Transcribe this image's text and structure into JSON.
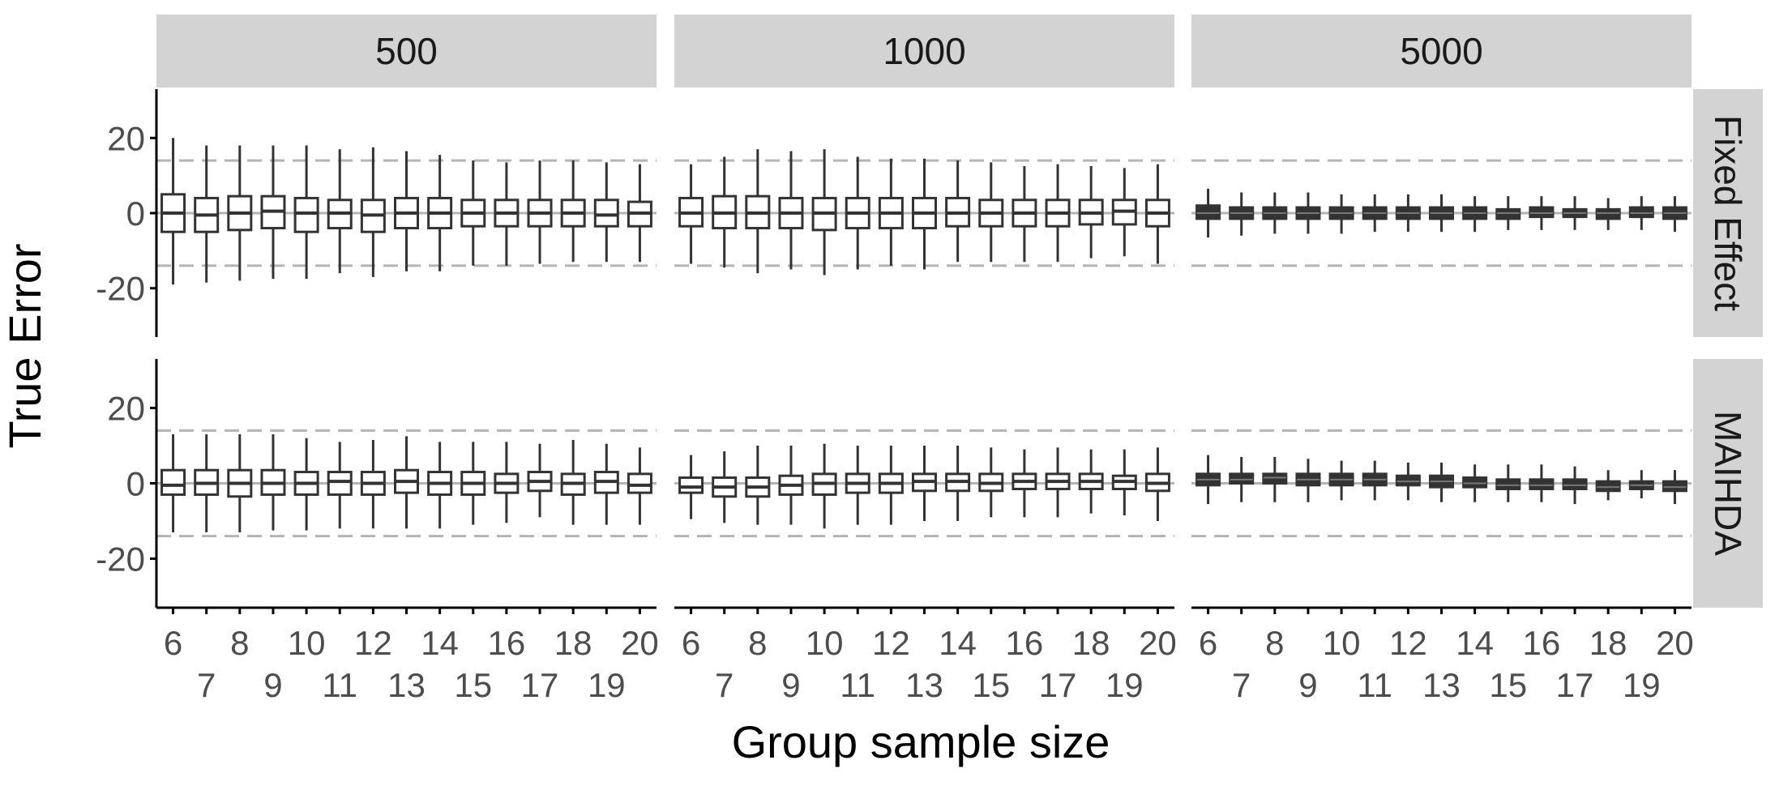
{
  "chart_data": {
    "type": "boxplot",
    "xlabel": "Group sample size",
    "ylabel": "True Error",
    "ylim": [
      -33,
      33
    ],
    "yticks": [
      20,
      0,
      -20
    ],
    "ytick_labels": [
      "20",
      "0",
      "-20"
    ],
    "reference_lines": [
      0,
      14,
      -14
    ],
    "categories": [
      6,
      7,
      8,
      9,
      10,
      11,
      12,
      13,
      14,
      15,
      16,
      17,
      18,
      19,
      20
    ],
    "xtick_labels_top": [
      "6",
      "8",
      "10",
      "12",
      "14",
      "16",
      "18",
      "20"
    ],
    "xtick_labels_bottom": [
      "7",
      "9",
      "11",
      "13",
      "15",
      "17",
      "19"
    ],
    "column_facets": [
      "500",
      "1000",
      "5000"
    ],
    "row_facets": [
      "Fixed Effect",
      "MAIHDA"
    ],
    "colors": {
      "strip": "#d3d3d3",
      "box_fill": "#ffffff",
      "box_fill_dense": "#333333",
      "line": "#333333",
      "reference": "#b4b4b4",
      "axis": "#000000",
      "tick_text": "#4d4d4d"
    },
    "panels": [
      {
        "column": "500",
        "row": "Fixed Effect",
        "boxes": [
          {
            "min": -19,
            "q1": -5,
            "median": 0,
            "q3": 5,
            "max": 20
          },
          {
            "min": -18.5,
            "q1": -5,
            "median": -0.5,
            "q3": 4,
            "max": 18
          },
          {
            "min": -18,
            "q1": -4.5,
            "median": 0,
            "q3": 4.5,
            "max": 18
          },
          {
            "min": -17.5,
            "q1": -4,
            "median": 0.5,
            "q3": 4.5,
            "max": 18
          },
          {
            "min": -17.5,
            "q1": -5,
            "median": 0,
            "q3": 4,
            "max": 18
          },
          {
            "min": -16,
            "q1": -4,
            "median": 0,
            "q3": 3.5,
            "max": 17
          },
          {
            "min": -17,
            "q1": -5,
            "median": -0.5,
            "q3": 3.5,
            "max": 17.5
          },
          {
            "min": -15.5,
            "q1": -4,
            "median": 0,
            "q3": 4,
            "max": 16.5
          },
          {
            "min": -15.5,
            "q1": -4,
            "median": 0,
            "q3": 4,
            "max": 15.5
          },
          {
            "min": -14,
            "q1": -3.5,
            "median": 0,
            "q3": 3.5,
            "max": 14
          },
          {
            "min": -14,
            "q1": -3.5,
            "median": 0,
            "q3": 3.5,
            "max": 13.5
          },
          {
            "min": -13.5,
            "q1": -3.5,
            "median": 0,
            "q3": 3.5,
            "max": 14
          },
          {
            "min": -13,
            "q1": -3.5,
            "median": 0,
            "q3": 3.5,
            "max": 14
          },
          {
            "min": -13,
            "q1": -3.5,
            "median": -0.5,
            "q3": 3.5,
            "max": 13.5
          },
          {
            "min": -13,
            "q1": -3.5,
            "median": 0,
            "q3": 3,
            "max": 13
          }
        ]
      },
      {
        "column": "1000",
        "row": "Fixed Effect",
        "boxes": [
          {
            "min": -13.5,
            "q1": -3.5,
            "median": 0,
            "q3": 4,
            "max": 13
          },
          {
            "min": -14.5,
            "q1": -4,
            "median": 0,
            "q3": 4.5,
            "max": 15
          },
          {
            "min": -16,
            "q1": -4,
            "median": 0,
            "q3": 4.5,
            "max": 17
          },
          {
            "min": -15,
            "q1": -4,
            "median": 0,
            "q3": 4,
            "max": 16.5
          },
          {
            "min": -16.5,
            "q1": -4.5,
            "median": 0,
            "q3": 4,
            "max": 17
          },
          {
            "min": -15,
            "q1": -4,
            "median": 0,
            "q3": 4,
            "max": 15
          },
          {
            "min": -14,
            "q1": -4,
            "median": 0,
            "q3": 4,
            "max": 14.5
          },
          {
            "min": -15,
            "q1": -4,
            "median": 0,
            "q3": 4,
            "max": 14.5
          },
          {
            "min": -13,
            "q1": -3.5,
            "median": 0,
            "q3": 4,
            "max": 14
          },
          {
            "min": -13,
            "q1": -3.5,
            "median": 0,
            "q3": 3.5,
            "max": 13.5
          },
          {
            "min": -13,
            "q1": -3.5,
            "median": 0,
            "q3": 3.5,
            "max": 12.5
          },
          {
            "min": -13,
            "q1": -3.5,
            "median": 0,
            "q3": 3.5,
            "max": 13
          },
          {
            "min": -12,
            "q1": -3,
            "median": 0,
            "q3": 3.5,
            "max": 12.5
          },
          {
            "min": -11.5,
            "q1": -3,
            "median": 0.5,
            "q3": 3.5,
            "max": 12
          },
          {
            "min": -13.5,
            "q1": -3.5,
            "median": 0,
            "q3": 3.5,
            "max": 13
          }
        ]
      },
      {
        "column": "5000",
        "row": "Fixed Effect",
        "boxes": [
          {
            "min": -6.5,
            "q1": -1.5,
            "median": 0,
            "q3": 2,
            "max": 6.5
          },
          {
            "min": -6,
            "q1": -1.5,
            "median": 0,
            "q3": 1.5,
            "max": 5.5
          },
          {
            "min": -5.5,
            "q1": -1.5,
            "median": 0,
            "q3": 1.5,
            "max": 5.5
          },
          {
            "min": -5.5,
            "q1": -1.5,
            "median": 0,
            "q3": 1.5,
            "max": 5.5
          },
          {
            "min": -5.5,
            "q1": -1.5,
            "median": 0,
            "q3": 1.5,
            "max": 5
          },
          {
            "min": -5,
            "q1": -1.5,
            "median": 0,
            "q3": 1.5,
            "max": 5
          },
          {
            "min": -5,
            "q1": -1.5,
            "median": 0,
            "q3": 1.5,
            "max": 5
          },
          {
            "min": -5,
            "q1": -1.5,
            "median": 0,
            "q3": 1.5,
            "max": 5
          },
          {
            "min": -5,
            "q1": -1.5,
            "median": 0,
            "q3": 1.5,
            "max": 4.5
          },
          {
            "min": -4.5,
            "q1": -1.5,
            "median": 0,
            "q3": 1,
            "max": 4.5
          },
          {
            "min": -4.5,
            "q1": -1,
            "median": 0,
            "q3": 1.5,
            "max": 4.5
          },
          {
            "min": -4.5,
            "q1": -1,
            "median": 0,
            "q3": 1,
            "max": 4.5
          },
          {
            "min": -4.5,
            "q1": -1.5,
            "median": 0,
            "q3": 1,
            "max": 4
          },
          {
            "min": -4.5,
            "q1": -1,
            "median": 0,
            "q3": 1.5,
            "max": 4.5
          },
          {
            "min": -5,
            "q1": -1.5,
            "median": 0,
            "q3": 1.5,
            "max": 4.5
          }
        ]
      },
      {
        "column": "500",
        "row": "MAIHDA",
        "boxes": [
          {
            "min": -13,
            "q1": -3,
            "median": -0.5,
            "q3": 3.5,
            "max": 13
          },
          {
            "min": -13,
            "q1": -3,
            "median": 0,
            "q3": 3.5,
            "max": 13
          },
          {
            "min": -13,
            "q1": -3.5,
            "median": 0,
            "q3": 3.5,
            "max": 13
          },
          {
            "min": -12.5,
            "q1": -3,
            "median": 0,
            "q3": 3.5,
            "max": 13
          },
          {
            "min": -12.5,
            "q1": -3,
            "median": 0,
            "q3": 3,
            "max": 12
          },
          {
            "min": -12,
            "q1": -3,
            "median": 0.5,
            "q3": 3,
            "max": 11
          },
          {
            "min": -12,
            "q1": -3,
            "median": 0,
            "q3": 3,
            "max": 11.5
          },
          {
            "min": -12,
            "q1": -2.5,
            "median": 0.5,
            "q3": 3.5,
            "max": 12.5
          },
          {
            "min": -12,
            "q1": -3,
            "median": 0,
            "q3": 3,
            "max": 11
          },
          {
            "min": -11,
            "q1": -3,
            "median": 0,
            "q3": 3,
            "max": 11
          },
          {
            "min": -10.5,
            "q1": -2.5,
            "median": 0,
            "q3": 2.5,
            "max": 11
          },
          {
            "min": -9,
            "q1": -2,
            "median": 0.5,
            "q3": 3,
            "max": 10.5
          },
          {
            "min": -11,
            "q1": -3,
            "median": 0,
            "q3": 2.5,
            "max": 11.5
          },
          {
            "min": -11,
            "q1": -2.5,
            "median": 0.5,
            "q3": 3,
            "max": 10.5
          },
          {
            "min": -11,
            "q1": -2.5,
            "median": -0.5,
            "q3": 2.5,
            "max": 9.5
          }
        ]
      },
      {
        "column": "1000",
        "row": "MAIHDA",
        "boxes": [
          {
            "min": -9.5,
            "q1": -2.5,
            "median": -1,
            "q3": 1.5,
            "max": 7.5
          },
          {
            "min": -10.5,
            "q1": -3.5,
            "median": -1,
            "q3": 1.5,
            "max": 8.5
          },
          {
            "min": -11,
            "q1": -3.5,
            "median": -1,
            "q3": 1.5,
            "max": 10
          },
          {
            "min": -11,
            "q1": -3,
            "median": -0.5,
            "q3": 2,
            "max": 10
          },
          {
            "min": -12,
            "q1": -3,
            "median": 0,
            "q3": 2.5,
            "max": 10.5
          },
          {
            "min": -11,
            "q1": -2.5,
            "median": 0,
            "q3": 2.5,
            "max": 10
          },
          {
            "min": -11,
            "q1": -2.5,
            "median": 0,
            "q3": 2.5,
            "max": 10
          },
          {
            "min": -10,
            "q1": -2,
            "median": 0.5,
            "q3": 2.5,
            "max": 10
          },
          {
            "min": -10,
            "q1": -2,
            "median": 0.5,
            "q3": 2.5,
            "max": 10
          },
          {
            "min": -9,
            "q1": -2,
            "median": 0,
            "q3": 2.5,
            "max": 9.5
          },
          {
            "min": -9,
            "q1": -1.5,
            "median": 0.5,
            "q3": 2.5,
            "max": 9
          },
          {
            "min": -9,
            "q1": -1.5,
            "median": 0.5,
            "q3": 2.5,
            "max": 9.5
          },
          {
            "min": -8,
            "q1": -1.5,
            "median": 0.5,
            "q3": 2.5,
            "max": 9
          },
          {
            "min": -8.5,
            "q1": -1.5,
            "median": 0.5,
            "q3": 2,
            "max": 9
          },
          {
            "min": -10,
            "q1": -2,
            "median": 0,
            "q3": 2.5,
            "max": 9.5
          }
        ]
      },
      {
        "column": "5000",
        "row": "MAIHDA",
        "boxes": [
          {
            "min": -5.5,
            "q1": -0.5,
            "median": 1,
            "q3": 2.5,
            "max": 7.5
          },
          {
            "min": -5,
            "q1": 0,
            "median": 1,
            "q3": 2.5,
            "max": 7
          },
          {
            "min": -5,
            "q1": 0,
            "median": 1.5,
            "q3": 2.5,
            "max": 7
          },
          {
            "min": -5,
            "q1": -0.5,
            "median": 1,
            "q3": 2.5,
            "max": 6.5
          },
          {
            "min": -4.5,
            "q1": -0.5,
            "median": 1,
            "q3": 2.5,
            "max": 6
          },
          {
            "min": -4.5,
            "q1": -0.5,
            "median": 1,
            "q3": 2.5,
            "max": 6
          },
          {
            "min": -4.5,
            "q1": -0.5,
            "median": 0.5,
            "q3": 2,
            "max": 5.5
          },
          {
            "min": -5,
            "q1": -1,
            "median": 0.5,
            "q3": 2,
            "max": 5.5
          },
          {
            "min": -5,
            "q1": -1,
            "median": 0,
            "q3": 1.5,
            "max": 5
          },
          {
            "min": -5,
            "q1": -1.5,
            "median": -0.5,
            "q3": 1,
            "max": 5
          },
          {
            "min": -5,
            "q1": -1.5,
            "median": -0.5,
            "q3": 1,
            "max": 5
          },
          {
            "min": -5.5,
            "q1": -1.5,
            "median": -0.5,
            "q3": 1,
            "max": 4.5
          },
          {
            "min": -4.5,
            "q1": -2,
            "median": -1,
            "q3": 0.5,
            "max": 3.5
          },
          {
            "min": -4,
            "q1": -1.5,
            "median": -0.5,
            "q3": 0.5,
            "max": 3.5
          },
          {
            "min": -5.5,
            "q1": -2,
            "median": -1,
            "q3": 0.5,
            "max": 3.5
          }
        ]
      }
    ]
  }
}
